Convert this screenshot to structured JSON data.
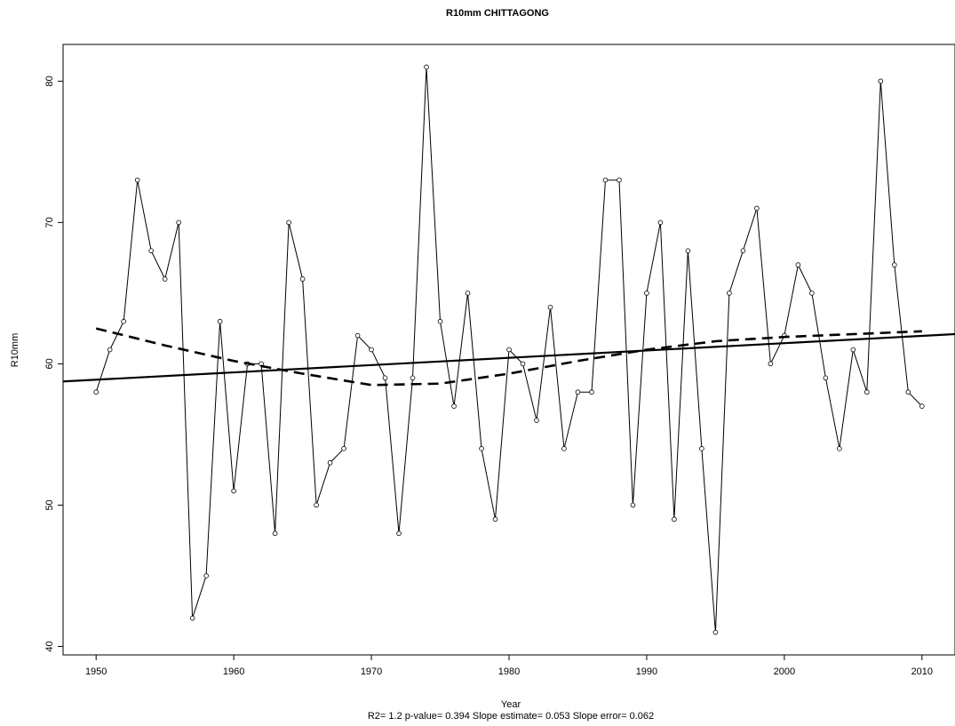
{
  "chart_data": {
    "type": "line",
    "title": "R10mm   CHITTAGONG",
    "xlabel": "Year",
    "ylabel": "R10mm",
    "subtitle": "R2= 1.2  p-value= 0.394  Slope estimate= 0.053  Slope error= 0.062",
    "xlim": [
      1947.6,
      2012.4
    ],
    "ylim": [
      39.4,
      82.6
    ],
    "x_ticks": [
      1950,
      1960,
      1970,
      1980,
      1990,
      2000,
      2010
    ],
    "y_ticks": [
      40,
      50,
      60,
      70,
      80
    ],
    "grid": false,
    "series": [
      {
        "style": "line-with-circle-markers",
        "x": [
          1950,
          1951,
          1952,
          1953,
          1954,
          1955,
          1956,
          1957,
          1958,
          1959,
          1960,
          1961,
          1962,
          1963,
          1964,
          1965,
          1966,
          1967,
          1968,
          1969,
          1970,
          1971,
          1972,
          1973,
          1974,
          1975,
          1976,
          1977,
          1978,
          1979,
          1980,
          1981,
          1982,
          1983,
          1984,
          1985,
          1986,
          1987,
          1988,
          1989,
          1990,
          1991,
          1992,
          1993,
          1994,
          1995,
          1996,
          1997,
          1998,
          1999,
          2000,
          2001,
          2002,
          2003,
          2004,
          2005,
          2006,
          2007,
          2008,
          2009,
          2010
        ],
        "values": [
          58,
          61,
          63,
          73,
          68,
          66,
          70,
          42,
          45,
          63,
          51,
          60,
          60,
          48,
          70,
          66,
          50,
          53,
          54,
          62,
          61,
          59,
          48,
          59,
          81,
          63,
          57,
          65,
          54,
          49,
          61,
          60,
          56,
          64,
          54,
          58,
          58,
          73,
          73,
          50,
          65,
          70,
          49,
          68,
          54,
          41,
          65,
          68,
          71,
          60,
          62,
          67,
          65,
          59,
          54,
          61,
          58,
          80,
          67,
          58,
          57
        ]
      },
      {
        "style": "solid-trend",
        "x": [
          1947.6,
          2012.4
        ],
        "values": [
          58.75,
          62.1
        ]
      },
      {
        "style": "dashed-smooth",
        "x": [
          1950,
          1955,
          1960,
          1965,
          1970,
          1975,
          1980,
          1985,
          1990,
          1995,
          2000,
          2005,
          2010
        ],
        "values": [
          62.5,
          61.3,
          60.2,
          59.3,
          58.5,
          58.6,
          59.3,
          60.2,
          61.0,
          61.6,
          61.9,
          62.1,
          62.3
        ]
      }
    ]
  }
}
